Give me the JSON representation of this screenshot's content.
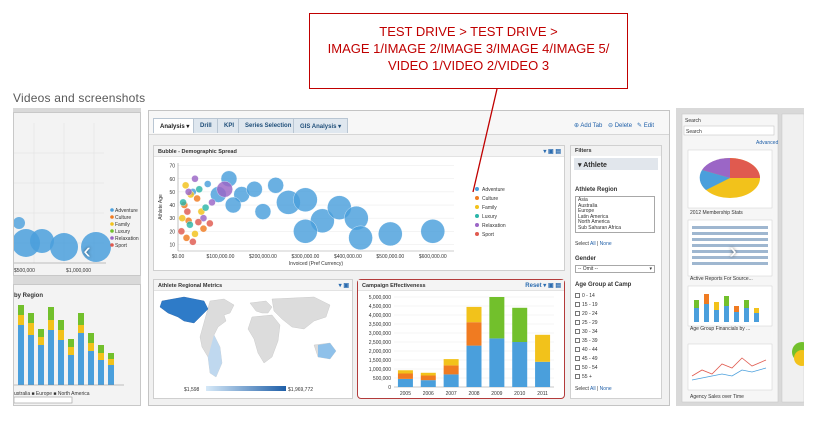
{
  "callout": {
    "line1": "TEST DRIVE > TEST DRIVE >",
    "line2": "IMAGE 1/IMAGE 2/IMAGE 3/IMAGE 4/IMAGE 5/",
    "line3": "VIDEO 1/VIDEO 2/VIDEO 3"
  },
  "section_title": "Videos and screenshots",
  "nav": {
    "prev": "‹",
    "next": "›"
  },
  "colors": {
    "accent": "#c00000",
    "blue": "#4a9fdc",
    "orange": "#f07b21",
    "yellow": "#f2c21b",
    "green": "#72c02c",
    "teal": "#2bb5a8",
    "purple": "#9b66c6",
    "red": "#e05a4f"
  },
  "left_panel": {
    "legend": [
      "Adventure",
      "Culture",
      "Family",
      "Luxury",
      "Relaxation",
      "Sport"
    ],
    "axis_ticks": [
      "$500,000",
      "$1,000,000"
    ],
    "bottom_title": "by Region",
    "bottom_legend": "ustralia ■ Europe ■ North America"
  },
  "main": {
    "tabs": [
      "Analysis",
      "Drill",
      "KPI",
      "Series Selection",
      "GIS Analysis"
    ],
    "actions": {
      "add_tab": "Add Tab",
      "delete": "Delete",
      "edit": "Edit"
    },
    "bubble_title": "Bubble - Demographic Spread",
    "map_title": "Athlete Regional Metrics",
    "map_min": "$1,598",
    "map_max": "$1,969,772",
    "campaign_title": "Campaign Effectiveness",
    "campaign_reset": "Reset",
    "filters": {
      "header": "Filters",
      "athlete": "Athlete",
      "region_label": "Athlete Region",
      "regions": [
        "Asia",
        "Australia",
        "Europe",
        "Latin America",
        "North America",
        "Sub Saharan Africa"
      ],
      "select_prefix": "Select",
      "select_all": "All",
      "select_none": "None",
      "gender_label": "Gender",
      "gender_value": "-- Omit --",
      "age_label": "Age Group at Camp",
      "age_groups": [
        "0 - 14",
        "15 - 19",
        "20 - 24",
        "25 - 29",
        "30 - 34",
        "35 - 39",
        "40 - 44",
        "45 - 49",
        "50 - 54",
        "55 +"
      ]
    }
  },
  "right_panel": {
    "search": "Search",
    "search_placeholder": "Search",
    "advanced": "Advanced",
    "thumbs": [
      "2012 Membership Stats",
      "Active Reports For Source...",
      "Age Group Financials by ...",
      "Agency Sales over Time"
    ]
  },
  "chart_data": [
    {
      "type": "scatter",
      "title": "Bubble - Demographic Spread",
      "xlabel": "Invoiced (Pref Currency)",
      "ylabel": "Athlete Age",
      "x_ticks": [
        "$0.00",
        "$100,000.00",
        "$200,000.00",
        "$300,000.00",
        "$400,000.00",
        "$500,000.00",
        "$600,000.00"
      ],
      "y_ticks": [
        "10",
        "20",
        "30",
        "40",
        "50",
        "60",
        "70"
      ],
      "xlim": [
        0,
        650000
      ],
      "ylim": [
        5,
        72
      ],
      "legend": [
        "Adventure",
        "Culture",
        "Family",
        "Luxury",
        "Relaxation",
        "Sport"
      ],
      "series": [
        {
          "name": "Adventure",
          "points": [
            [
              35000,
              50
            ],
            [
              70000,
              56
            ],
            [
              120000,
              60
            ],
            [
              150000,
              48
            ],
            [
              180000,
              52
            ],
            [
              230000,
              55
            ],
            [
              260000,
              42
            ],
            [
              300000,
              44
            ],
            [
              340000,
              28
            ],
            [
              380000,
              38
            ],
            [
              420000,
              30
            ],
            [
              430000,
              15
            ],
            [
              500000,
              18
            ],
            [
              600000,
              20
            ],
            [
              95000,
              48
            ],
            [
              200000,
              35
            ],
            [
              300000,
              20
            ],
            [
              130000,
              40
            ]
          ]
        },
        {
          "name": "Culture",
          "points": [
            [
              15000,
              40
            ],
            [
              25000,
              28
            ],
            [
              45000,
              45
            ],
            [
              60000,
              22
            ],
            [
              20000,
              15
            ]
          ]
        },
        {
          "name": "Family",
          "points": [
            [
              10000,
              30
            ],
            [
              30000,
              48
            ],
            [
              55000,
              35
            ],
            [
              40000,
              18
            ],
            [
              18000,
              55
            ]
          ]
        },
        {
          "name": "Luxury",
          "points": [
            [
              12000,
              42
            ],
            [
              28000,
              25
            ],
            [
              50000,
              52
            ],
            [
              65000,
              38
            ]
          ]
        },
        {
          "name": "Relaxation",
          "points": [
            [
              40000,
              60
            ],
            [
              80000,
              42
            ],
            [
              60000,
              30
            ],
            [
              25000,
              50
            ],
            [
              110000,
              52
            ]
          ]
        },
        {
          "name": "Sport",
          "points": [
            [
              8000,
              20
            ],
            [
              22000,
              35
            ],
            [
              48000,
              27
            ],
            [
              35000,
              12
            ],
            [
              75000,
              26
            ]
          ]
        }
      ]
    },
    {
      "type": "bar",
      "stacked": true,
      "title": "Campaign Effectiveness",
      "categories": [
        "2005",
        "2006",
        "2007",
        "2008",
        "2009",
        "2010",
        "2011"
      ],
      "y_ticks": [
        "0",
        "500,000",
        "1,000,000",
        "1,500,000",
        "2,000,000",
        "2,500,000",
        "3,000,000",
        "3,500,000",
        "4,000,000",
        "4,500,000",
        "5,000,000"
      ],
      "ylim": [
        0,
        5000000
      ],
      "series": [
        {
          "name": "Blue",
          "color": "#4a9fdc",
          "values": [
            450000,
            380000,
            700000,
            2300000,
            2700000,
            2500000,
            1400000
          ]
        },
        {
          "name": "Orange",
          "color": "#f07b21",
          "values": [
            300000,
            260000,
            500000,
            1300000,
            0,
            0,
            0
          ]
        },
        {
          "name": "Yellow",
          "color": "#f2c21b",
          "values": [
            180000,
            150000,
            350000,
            850000,
            0,
            0,
            1500000
          ]
        },
        {
          "name": "Green",
          "color": "#72c02c",
          "values": [
            0,
            0,
            0,
            0,
            2300000,
            1900000,
            0
          ]
        }
      ]
    }
  ]
}
